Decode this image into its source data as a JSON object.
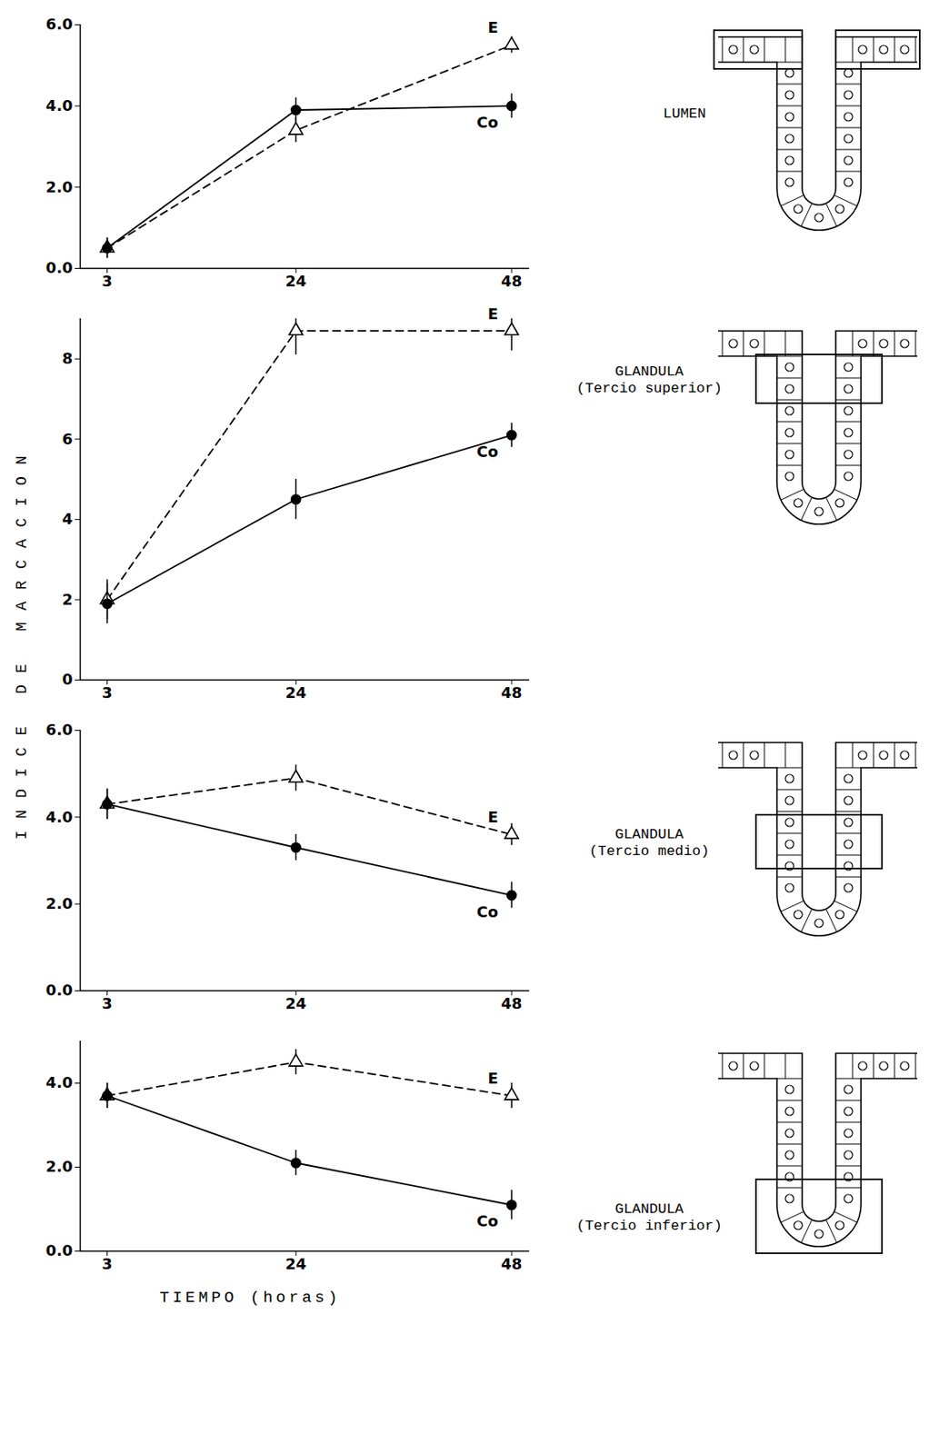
{
  "chart_data": [
    {
      "type": "line",
      "title": "LUMEN",
      "x": [
        3,
        24,
        48
      ],
      "xlim": [
        0,
        50
      ],
      "xticks": [
        3,
        24,
        48
      ],
      "ylim": [
        0,
        6
      ],
      "yticks": [
        0,
        2,
        4,
        6
      ],
      "series": [
        {
          "name": "E",
          "color": "#000000",
          "line_style": "dashed",
          "marker": "triangle",
          "values": [
            0.5,
            3.4,
            5.5
          ],
          "error": [
            0.25,
            0.3,
            0.2
          ]
        },
        {
          "name": "Co",
          "color": "#000000",
          "line_style": "solid",
          "marker": "circle",
          "values": [
            0.5,
            3.9,
            4.0
          ],
          "error": [
            0.25,
            0.3,
            0.3
          ]
        }
      ]
    },
    {
      "type": "line",
      "title": "GLANDULA (Tercio superior)",
      "x": [
        3,
        24,
        48
      ],
      "xlim": [
        0,
        50
      ],
      "xticks": [
        3,
        24,
        48
      ],
      "ylim": [
        0,
        9
      ],
      "yticks": [
        0,
        2,
        4,
        6,
        8
      ],
      "series": [
        {
          "name": "E",
          "color": "#000000",
          "line_style": "dashed",
          "marker": "triangle",
          "values": [
            2.0,
            8.7,
            8.7
          ],
          "error": [
            0.5,
            0.6,
            0.5
          ]
        },
        {
          "name": "Co",
          "color": "#000000",
          "line_style": "solid",
          "marker": "circle",
          "values": [
            1.9,
            4.5,
            6.1
          ],
          "error": [
            0.5,
            0.5,
            0.3
          ]
        }
      ]
    },
    {
      "type": "line",
      "title": "GLANDULA (Tercio medio)",
      "x": [
        3,
        24,
        48
      ],
      "xlim": [
        0,
        50
      ],
      "xticks": [
        3,
        24,
        48
      ],
      "ylim": [
        0,
        6
      ],
      "yticks": [
        0,
        2,
        4,
        6
      ],
      "series": [
        {
          "name": "E",
          "color": "#000000",
          "line_style": "dashed",
          "marker": "triangle",
          "values": [
            4.3,
            4.9,
            3.6
          ],
          "error": [
            0.35,
            0.3,
            0.25
          ]
        },
        {
          "name": "Co",
          "color": "#000000",
          "line_style": "solid",
          "marker": "circle",
          "values": [
            4.3,
            3.3,
            2.2
          ],
          "error": [
            0.35,
            0.3,
            0.3
          ]
        }
      ]
    },
    {
      "type": "line",
      "title": "GLANDULA (Tercio inferior)",
      "x": [
        3,
        24,
        48
      ],
      "xlim": [
        0,
        50
      ],
      "xticks": [
        3,
        24,
        48
      ],
      "ylim": [
        0,
        5
      ],
      "yticks": [
        0,
        2,
        4
      ],
      "series": [
        {
          "name": "E",
          "color": "#000000",
          "line_style": "dashed",
          "marker": "triangle",
          "values": [
            3.7,
            4.5,
            3.7
          ],
          "error": [
            0.3,
            0.3,
            0.3
          ]
        },
        {
          "name": "Co",
          "color": "#000000",
          "line_style": "solid",
          "marker": "circle",
          "values": [
            3.7,
            2.1,
            1.1
          ],
          "error": [
            0.3,
            0.3,
            0.35
          ]
        }
      ]
    }
  ],
  "x_label": "TIEMPO (horas)",
  "y_label": "INDICE DE MARCACION"
}
